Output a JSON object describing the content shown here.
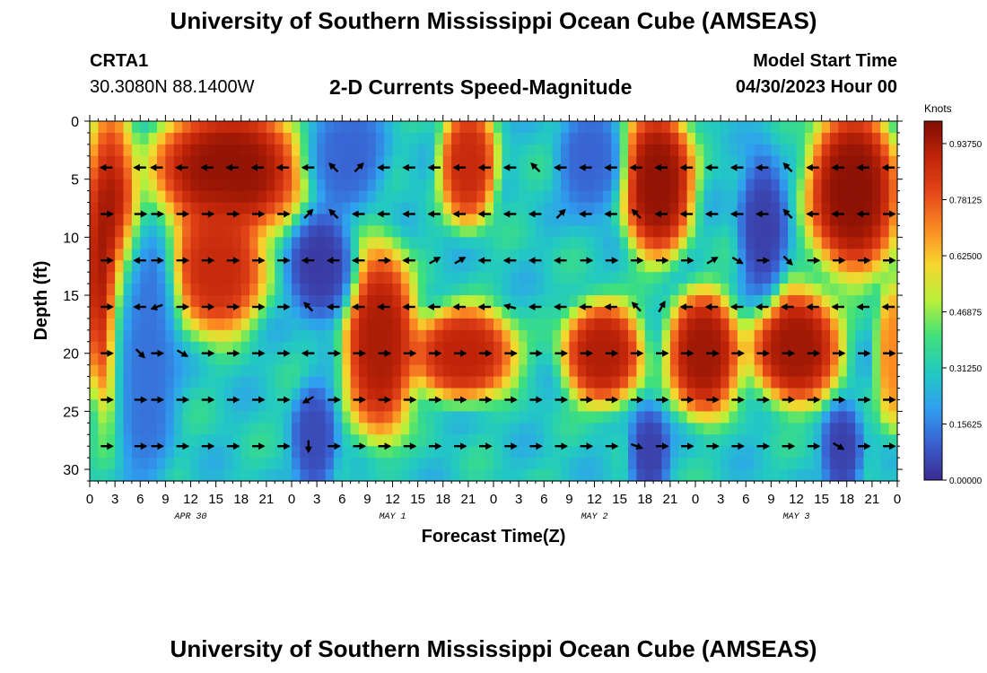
{
  "header": {
    "title": "University of Southern Mississippi Ocean Cube (AMSEAS)",
    "station": "CRTA1",
    "coords": "30.3080N  88.1400W",
    "subtitle": "2-D Currents Speed-Magnitude",
    "model_start_label": "Model Start Time",
    "model_start_value": "04/30/2023 Hour 00"
  },
  "footer": {
    "title_repeat": "University of Southern Mississippi Ocean Cube (AMSEAS)"
  },
  "chart_data": {
    "type": "heatmap",
    "title": "2-D Currents Speed-Magnitude",
    "xlabel": "Forecast Time(Z)",
    "ylabel": "Depth (ft)",
    "xlim": [
      0,
      96
    ],
    "ylim": [
      31,
      0
    ],
    "x_ticks": [
      {
        "hour": 0,
        "label": "0"
      },
      {
        "hour": 3,
        "label": "3"
      },
      {
        "hour": 6,
        "label": "6"
      },
      {
        "hour": 9,
        "label": "9"
      },
      {
        "hour": 12,
        "label": "12"
      },
      {
        "hour": 15,
        "label": "15"
      },
      {
        "hour": 18,
        "label": "18"
      },
      {
        "hour": 21,
        "label": "21"
      },
      {
        "hour": 24,
        "label": "0"
      },
      {
        "hour": 27,
        "label": "3"
      },
      {
        "hour": 30,
        "label": "6"
      },
      {
        "hour": 33,
        "label": "9"
      },
      {
        "hour": 36,
        "label": "12"
      },
      {
        "hour": 39,
        "label": "15"
      },
      {
        "hour": 42,
        "label": "18"
      },
      {
        "hour": 45,
        "label": "21"
      },
      {
        "hour": 48,
        "label": "0"
      },
      {
        "hour": 51,
        "label": "3"
      },
      {
        "hour": 54,
        "label": "6"
      },
      {
        "hour": 57,
        "label": "9"
      },
      {
        "hour": 60,
        "label": "12"
      },
      {
        "hour": 63,
        "label": "15"
      },
      {
        "hour": 66,
        "label": "18"
      },
      {
        "hour": 69,
        "label": "21"
      },
      {
        "hour": 72,
        "label": "0"
      },
      {
        "hour": 75,
        "label": "3"
      },
      {
        "hour": 78,
        "label": "6"
      },
      {
        "hour": 81,
        "label": "9"
      },
      {
        "hour": 84,
        "label": "12"
      },
      {
        "hour": 87,
        "label": "15"
      },
      {
        "hour": 90,
        "label": "18"
      },
      {
        "hour": 93,
        "label": "21"
      },
      {
        "hour": 96,
        "label": "0"
      }
    ],
    "date_labels": [
      {
        "hour": 12,
        "label": "APR 30"
      },
      {
        "hour": 36,
        "label": "MAY 1"
      },
      {
        "hour": 60,
        "label": "MAY 2"
      },
      {
        "hour": 84,
        "label": "MAY 3"
      }
    ],
    "y_ticks": [
      0,
      5,
      10,
      15,
      20,
      25,
      30
    ],
    "colorbar": {
      "unit": "Knots",
      "min": 0,
      "max": 1.0,
      "ticks": [
        "0.93750",
        "0.78125",
        "0.62500",
        "0.46875",
        "0.31250",
        "0.15625",
        "0.00000"
      ],
      "tick_values": [
        0.9375,
        0.78125,
        0.625,
        0.46875,
        0.3125,
        0.15625,
        0.0
      ]
    },
    "high_speed_regions": [
      {
        "t0": 0.5,
        "t1": 4.5,
        "d0": 0,
        "d1": 24,
        "value": 0.95
      },
      {
        "t0": 8.5,
        "t1": 24.5,
        "d0": 0,
        "d1": 8.5,
        "value": 0.97
      },
      {
        "t0": 11,
        "t1": 19.5,
        "d0": 8.5,
        "d1": 17,
        "value": 0.88
      },
      {
        "t0": 31.5,
        "t1": 37.5,
        "d0": 12,
        "d1": 26,
        "value": 0.93
      },
      {
        "t0": 39.5,
        "t1": 49.5,
        "d0": 17.5,
        "d1": 22.5,
        "value": 0.9
      },
      {
        "t0": 43,
        "t1": 47,
        "d0": 0,
        "d1": 7.5,
        "value": 0.88
      },
      {
        "t0": 57.5,
        "t1": 64.5,
        "d0": 17,
        "d1": 23,
        "value": 0.92
      },
      {
        "t0": 64.5,
        "t1": 70.5,
        "d0": 0,
        "d1": 10.5,
        "value": 0.97
      },
      {
        "t0": 70,
        "t1": 76,
        "d0": 16,
        "d1": 24,
        "value": 0.95
      },
      {
        "t0": 80,
        "t1": 88,
        "d0": 16,
        "d1": 23,
        "value": 0.95
      },
      {
        "t0": 86.5,
        "t1": 95,
        "d0": 0,
        "d1": 12,
        "value": 0.98
      },
      {
        "t0": 95,
        "t1": 96,
        "d0": 15,
        "d1": 25,
        "value": 0.7
      }
    ],
    "low_speed_regions": [
      {
        "t0": 25,
        "t1": 30,
        "d0": 9,
        "d1": 16,
        "value": 0.02
      },
      {
        "t0": 25.5,
        "t1": 28,
        "d0": 24,
        "d1": 31,
        "value": 0.05
      },
      {
        "t0": 27,
        "t1": 34,
        "d0": 0,
        "d1": 6,
        "value": 0.1
      },
      {
        "t0": 57,
        "t1": 62,
        "d0": 0,
        "d1": 7,
        "value": 0.1
      },
      {
        "t0": 65.5,
        "t1": 67.5,
        "d0": 26,
        "d1": 31,
        "value": 0.03
      },
      {
        "t0": 78.5,
        "t1": 81.5,
        "d0": 4,
        "d1": 14,
        "value": 0.03
      },
      {
        "t0": 88.5,
        "t1": 90.5,
        "d0": 26,
        "d1": 31,
        "value": 0.03
      },
      {
        "t0": 4,
        "t1": 9,
        "d0": 10,
        "d1": 31,
        "value": 0.12
      }
    ],
    "vector_depths_ft": [
      4,
      8,
      12,
      16,
      20,
      24,
      28
    ],
    "vector_times_h": [
      2,
      6,
      8,
      11,
      14,
      17,
      20,
      23,
      26,
      29,
      32,
      35,
      38,
      41,
      44,
      47,
      50,
      53,
      56,
      59,
      62,
      65,
      68,
      71,
      74,
      77,
      80,
      83,
      86,
      89,
      92,
      95
    ],
    "vector_directions_deg": {
      "4": [
        180,
        180,
        180,
        180,
        180,
        180,
        180,
        180,
        180,
        135,
        45,
        180,
        180,
        180,
        180,
        180,
        180,
        135,
        180,
        180,
        180,
        180,
        180,
        180,
        180,
        180,
        180,
        135,
        180,
        180,
        180,
        180
      ],
      "8": [
        0,
        0,
        0,
        0,
        0,
        0,
        0,
        0,
        45,
        135,
        180,
        180,
        180,
        180,
        180,
        180,
        180,
        180,
        45,
        180,
        180,
        135,
        180,
        180,
        180,
        180,
        180,
        135,
        180,
        180,
        180,
        0
      ],
      "12": [
        0,
        180,
        0,
        0,
        0,
        0,
        0,
        0,
        180,
        180,
        180,
        0,
        180,
        30,
        30,
        180,
        180,
        180,
        180,
        0,
        0,
        0,
        0,
        0,
        30,
        330,
        0,
        315,
        0,
        0,
        0,
        0
      ],
      "16": [
        0,
        180,
        200,
        0,
        0,
        0,
        0,
        0,
        135,
        180,
        180,
        180,
        180,
        180,
        180,
        180,
        165,
        180,
        180,
        180,
        180,
        135,
        60,
        180,
        180,
        180,
        180,
        180,
        180,
        180,
        180,
        180
      ],
      "20": [
        0,
        315,
        0,
        330,
        0,
        0,
        0,
        0,
        180,
        0,
        0,
        0,
        0,
        0,
        0,
        0,
        0,
        0,
        0,
        0,
        0,
        0,
        0,
        0,
        0,
        0,
        0,
        0,
        0,
        0,
        0,
        0
      ],
      "24": [
        0,
        0,
        0,
        0,
        0,
        0,
        0,
        0,
        210,
        0,
        0,
        0,
        0,
        0,
        0,
        0,
        0,
        0,
        0,
        0,
        0,
        0,
        0,
        0,
        0,
        0,
        0,
        0,
        0,
        0,
        0,
        0
      ],
      "28": [
        0,
        0,
        0,
        0,
        0,
        0,
        0,
        0,
        270,
        0,
        0,
        0,
        0,
        0,
        0,
        0,
        0,
        0,
        0,
        0,
        0,
        340,
        0,
        0,
        0,
        0,
        0,
        0,
        0,
        330,
        0,
        0
      ]
    }
  }
}
